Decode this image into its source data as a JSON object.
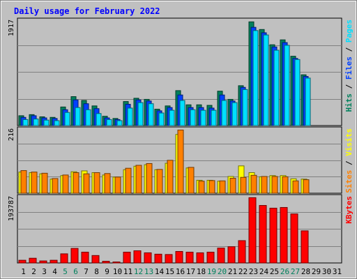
{
  "colors": {
    "hits": "#00805c",
    "files": "#0040ff",
    "pages": "#00e0ff",
    "visits": "#ffff00",
    "sites": "#ff8000",
    "kbytes": "#ff0000",
    "title": "#0000ff",
    "weekend_label": "#00805c",
    "plot_bg": "#c0c0c0",
    "frame_bg": "#c0c0c0"
  },
  "chart_data": {
    "type": "bar",
    "title": "Daily usage for February 2022",
    "x": [
      "1",
      "2",
      "3",
      "4",
      "5",
      "6",
      "7",
      "8",
      "9",
      "10",
      "11",
      "12",
      "13",
      "14",
      "15",
      "16",
      "17",
      "18",
      "19",
      "20",
      "21",
      "22",
      "23",
      "24",
      "25",
      "26",
      "27",
      "28",
      "29",
      "30",
      "31"
    ],
    "weekend_days": [
      "5",
      "6",
      "12",
      "13",
      "19",
      "20",
      "26",
      "27"
    ],
    "panels": [
      {
        "id": "top",
        "max_label": "1917",
        "ylim": [
          0,
          1917
        ],
        "legend": [
          {
            "label": "Hits",
            "color_key": "hits"
          },
          {
            "label": "Files",
            "color_key": "files"
          },
          {
            "label": "Pages",
            "color_key": "pages"
          }
        ],
        "series": [
          {
            "name": "Hits",
            "color_key": "hits",
            "values": [
              180,
              200,
              160,
              150,
              340,
              530,
              460,
              360,
              170,
              130,
              440,
              500,
              480,
              300,
              360,
              640,
              380,
              380,
              370,
              630,
              480,
              730,
              1900,
              1760,
              1480,
              1570,
              1270,
              930,
              0,
              0,
              0
            ]
          },
          {
            "name": "Files",
            "color_key": "files",
            "values": [
              150,
              180,
              140,
              130,
              290,
              470,
              400,
              310,
              140,
              110,
              390,
              470,
              450,
              270,
              330,
              560,
              330,
              330,
              320,
              560,
              450,
              700,
              1800,
              1700,
              1440,
              1520,
              1230,
              900,
              0,
              0,
              0
            ]
          },
          {
            "name": "Pages",
            "color_key": "pages",
            "values": [
              110,
              120,
              100,
              90,
              240,
              330,
              290,
              220,
              110,
              90,
              320,
              420,
              400,
              230,
              280,
              460,
              290,
              280,
              280,
              460,
              420,
              660,
              1740,
              1660,
              1380,
              1470,
              1210,
              870,
              0,
              0,
              0
            ]
          }
        ]
      },
      {
        "id": "middle",
        "max_label": "216",
        "ylim": [
          0,
          216
        ],
        "legend": [
          {
            "label": "Sites",
            "color_key": "sites"
          },
          {
            "label": "Visits",
            "color_key": "visits"
          }
        ],
        "series": [
          {
            "name": "Visits",
            "color_key": "visits",
            "values": [
              72,
              70,
              66,
              48,
              60,
              73,
              76,
              70,
              62,
              55,
              80,
              92,
              97,
              80,
              102,
              200,
              86,
              44,
              44,
              41,
              57,
              93,
              70,
              56,
              60,
              60,
              49,
              48,
              0,
              0,
              0
            ]
          },
          {
            "name": "Sites",
            "color_key": "sites",
            "values": [
              77,
              72,
              68,
              50,
              62,
              70,
              66,
              70,
              67,
              55,
              85,
              95,
              101,
              81,
              112,
              215,
              88,
              41,
              43,
              42,
              51,
              54,
              61,
              57,
              57,
              56,
              42,
              46,
              0,
              0,
              0
            ]
          }
        ]
      },
      {
        "id": "bottom",
        "max_label": "193787",
        "ylim": [
          0,
          193787
        ],
        "legend": [
          {
            "label": "KBytes",
            "color_key": "kbytes"
          }
        ],
        "series": [
          {
            "name": "KBytes",
            "color_key": "kbytes",
            "values": [
              8000,
              14000,
              6000,
              8000,
              27000,
              43000,
              32000,
              22000,
              5000,
              3000,
              32000,
              36000,
              30000,
              26000,
              25000,
              34000,
              32000,
              30000,
              32000,
              44000,
              48000,
              66000,
              193000,
              170000,
              162000,
              164000,
              145000,
              95000,
              0,
              0,
              0
            ]
          }
        ]
      }
    ]
  }
}
